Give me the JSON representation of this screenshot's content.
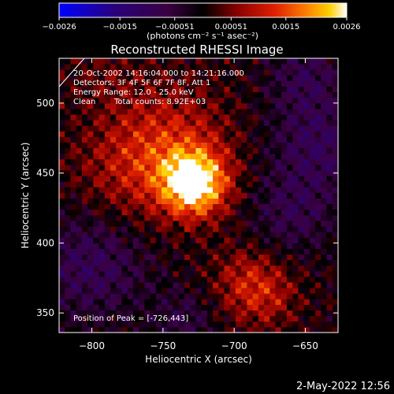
{
  "chart_data": {
    "type": "heatmap",
    "title": "Reconstructed RHESSI Image",
    "xlabel": "Heliocentric X (arcsec)",
    "ylabel": "Heliocentric Y (arcsec)",
    "xlim": [
      -823,
      -627
    ],
    "ylim": [
      336,
      532
    ],
    "xticks": [
      -800,
      -750,
      -700,
      -650
    ],
    "yticks": [
      350,
      400,
      450,
      500
    ],
    "xtick_labels": [
      "−800",
      "−750",
      "−700",
      "−650"
    ],
    "ytick_labels": [
      "350",
      "400",
      "450",
      "500"
    ],
    "colorbar": {
      "range": [
        -0.0026,
        0.0026
      ],
      "ticks": [
        -0.0026,
        -0.0015,
        -0.00051,
        0.00051,
        0.0015,
        0.0026
      ],
      "tick_labels": [
        "−0.0026",
        "−0.0015",
        "−0.00051",
        "0.00051",
        "0.0015",
        "0.0026"
      ],
      "unit_label": "(photons cm⁻² s⁻¹ asec⁻²)",
      "colors": [
        "#0000ff",
        "#2a0078",
        "#3a0040",
        "#000000",
        "#8a0000",
        "#e02000",
        "#ff8000",
        "#ffd000",
        "#ffffff"
      ]
    },
    "sources": [
      {
        "x": -728,
        "y": 443,
        "peak": 0.0026,
        "sigma": 16
      },
      {
        "x": -745,
        "y": 470,
        "peak": 0.001,
        "sigma": 30
      },
      {
        "x": -775,
        "y": 450,
        "peak": 0.0006,
        "sigma": 28
      },
      {
        "x": -690,
        "y": 372,
        "peak": 0.0009,
        "sigma": 18
      },
      {
        "x": -675,
        "y": 360,
        "peak": 0.0005,
        "sigma": 16
      },
      {
        "x": -790,
        "y": 520,
        "peak": 0.0003,
        "sigma": 18
      }
    ],
    "negative_regions": [
      {
        "x": -640,
        "y": 470,
        "peak": -0.0009,
        "sigma": 25
      },
      {
        "x": -800,
        "y": 385,
        "peak": -0.0009,
        "sigma": 28
      },
      {
        "x": -660,
        "y": 420,
        "peak": -0.0007,
        "sigma": 20
      },
      {
        "x": -735,
        "y": 345,
        "peak": -0.0006,
        "sigma": 15
      },
      {
        "x": -650,
        "y": 520,
        "peak": -0.0007,
        "sigma": 18
      }
    ],
    "peak_position": [
      -726,
      443
    ]
  },
  "annotations": {
    "time_range": "20-Oct-2002 14:16:04.000 to 14:21:16.000",
    "detectors": "Detectors: 3F 4F 5F 6F 7F 8F, Att 1",
    "energy_range": "Energy Range: 12.0 - 25.0 keV",
    "algorithm": "Clean",
    "total_counts": "Total counts: 8.92E+03",
    "peak_label": "Position of Peak = [-726,443]"
  },
  "footer": {
    "timestamp": "2-May-2022 12:56"
  }
}
